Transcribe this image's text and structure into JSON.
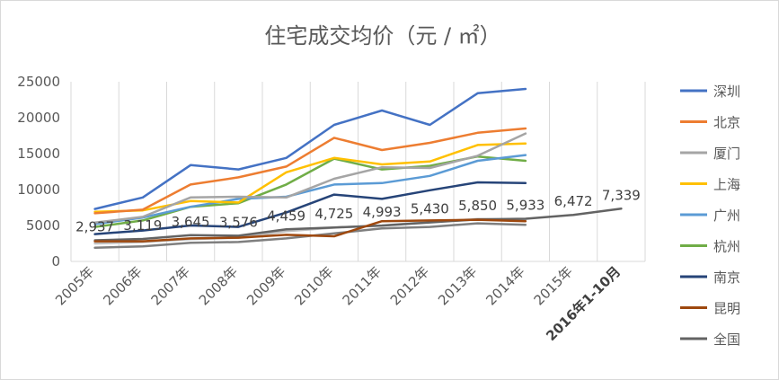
{
  "chart_data": {
    "type": "line",
    "title": "住宅成交均价（元 / ㎡）",
    "xlabel": "",
    "ylabel": "",
    "x": [
      "2005年",
      "2006年",
      "2007年",
      "2008年",
      "2009年",
      "2010年",
      "2011年",
      "2012年",
      "2013年",
      "2014年",
      "2015年",
      "2016年1-10月"
    ],
    "ylim": [
      0,
      25000
    ],
    "yticks": [
      0,
      5000,
      10000,
      15000,
      20000,
      25000
    ],
    "grid": "vertical",
    "legend": "right",
    "series": [
      {
        "name": "深圳",
        "color": "#4472c4",
        "values": [
          7300,
          8900,
          13400,
          12800,
          14400,
          19000,
          21000,
          19000,
          23400,
          24000,
          null,
          null
        ]
      },
      {
        "name": "北京",
        "color": "#ed7d31",
        "values": [
          6700,
          7200,
          10700,
          11700,
          13200,
          17200,
          15500,
          16500,
          17900,
          18500,
          null,
          null
        ]
      },
      {
        "name": "厦门",
        "color": "#a5a5a5",
        "values": [
          5400,
          6200,
          8900,
          9000,
          8900,
          11500,
          13100,
          13000,
          14700,
          17800,
          null,
          null
        ]
      },
      {
        "name": "上海",
        "color": "#ffc000",
        "values": [
          6900,
          7100,
          8400,
          8200,
          12400,
          14400,
          13500,
          13900,
          16200,
          16400,
          null,
          null
        ]
      },
      {
        "name": "广州",
        "color": "#5b9bd5",
        "values": [
          5200,
          6100,
          7600,
          8700,
          9000,
          10700,
          10900,
          11900,
          14000,
          14800,
          null,
          null
        ]
      },
      {
        "name": "杭州",
        "color": "#70ad47",
        "values": [
          4800,
          5700,
          7600,
          8100,
          10700,
          14300,
          12800,
          13300,
          14600,
          14000,
          null,
          null
        ]
      },
      {
        "name": "南京",
        "color": "#264478",
        "values": [
          3800,
          4300,
          5000,
          4800,
          6800,
          9300,
          8700,
          9900,
          11000,
          10900,
          null,
          null
        ]
      },
      {
        "name": "昆明",
        "color": "#9e480e",
        "values": [
          2800,
          2800,
          3200,
          3300,
          3700,
          3500,
          5600,
          5700,
          5800,
          5600,
          null,
          null
        ]
      },
      {
        "name": "全国",
        "color": "#636363",
        "values": [
          2937,
          3119,
          3645,
          3576,
          4459,
          4725,
          4993,
          5430,
          5850,
          5933,
          6472,
          7339
        ]
      }
    ],
    "data_labels": {
      "series": "全国",
      "values": [
        "2,937",
        "3,119",
        "3,645",
        "3,576",
        "4,459",
        "4,725",
        "4,993",
        "5,430",
        "5,850",
        "5,933",
        "6,472",
        "7,339"
      ]
    },
    "extra_gray_lines": [
      {
        "color": "#7f7f7f",
        "values": [
          1900,
          2100,
          2600,
          2700,
          3200,
          3900,
          4600,
          4800,
          5300,
          5100,
          null,
          null
        ]
      },
      {
        "color": "#bfbfbf",
        "values": [
          2500,
          2700,
          3100,
          3300,
          4200,
          4700,
          5000,
          5500,
          5900,
          5800,
          null,
          null
        ]
      }
    ]
  }
}
